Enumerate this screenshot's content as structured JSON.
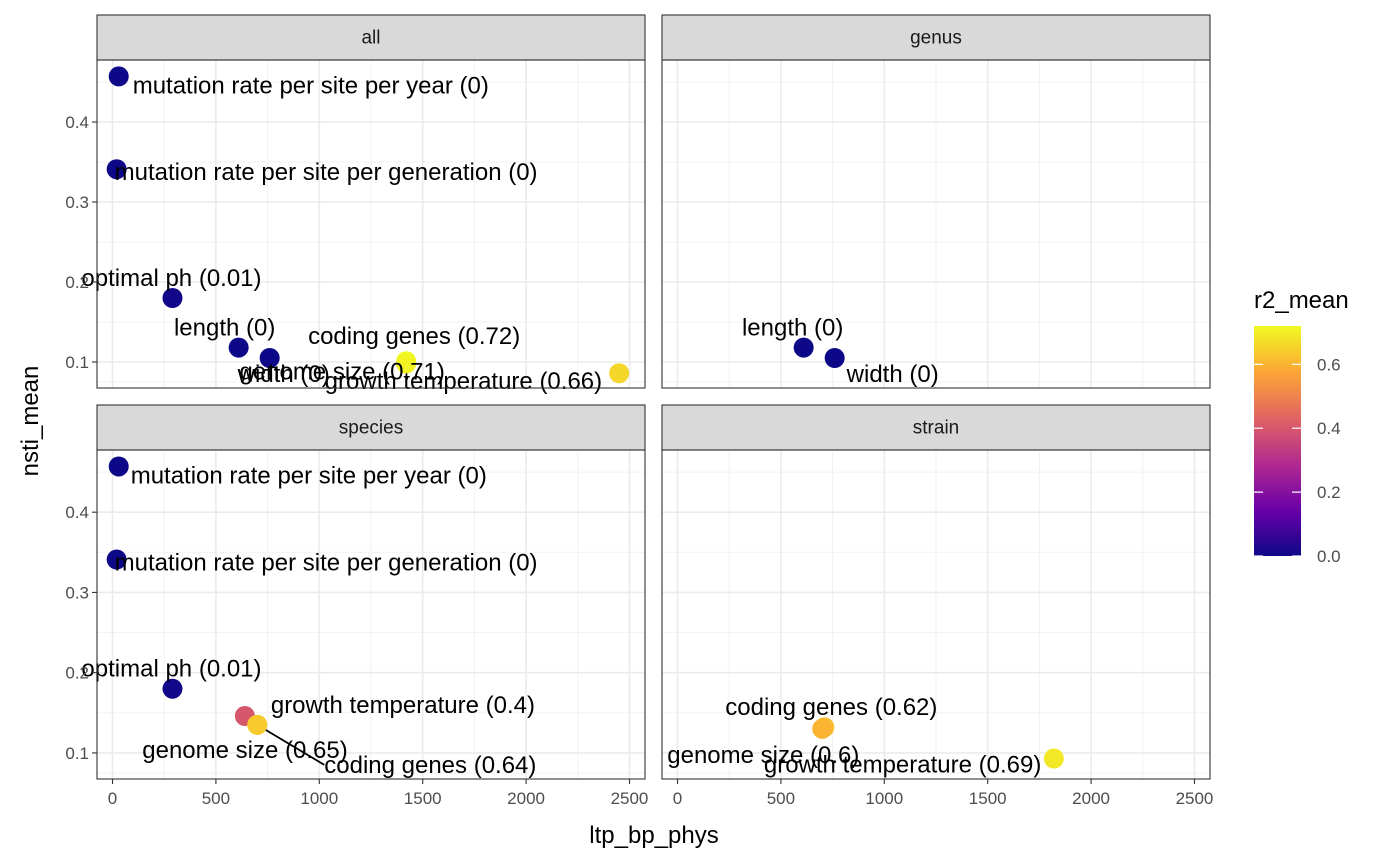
{
  "chart_data": {
    "type": "scatter",
    "xlabel": "ltp_bp_phys",
    "ylabel": "nsti_mean",
    "xlim": [
      -75,
      2575
    ],
    "ylim": [
      0.0675,
      0.4775
    ],
    "x_ticks": [
      0,
      500,
      1000,
      1500,
      2000,
      2500
    ],
    "y_ticks": [
      0.1,
      0.2,
      0.3,
      0.4
    ],
    "x_tick_labels": [
      "0",
      "500",
      "1000",
      "1500",
      "2000",
      "2500"
    ],
    "y_tick_labels": [
      "0.1",
      "0.2",
      "0.3",
      "0.4"
    ],
    "grid": true,
    "legend": {
      "title": "r2_mean",
      "position": "right",
      "ticks": [
        0.0,
        0.2,
        0.4,
        0.6
      ],
      "tick_labels": [
        "0.0",
        "0.2",
        "0.4",
        "0.6"
      ],
      "range": [
        0,
        0.72
      ],
      "colors": [
        "#0d0887",
        "#6a00a8",
        "#b12a90",
        "#e16462",
        "#fca636",
        "#f0f921"
      ]
    },
    "panels": [
      {
        "name": "all",
        "points": [
          {
            "x": 30,
            "y": 0.457,
            "r2": 0.0,
            "label": "mutation rate per site per year (0)"
          },
          {
            "x": 20,
            "y": 0.341,
            "r2": 0.0,
            "label": "mutation rate per site per generation (0)"
          },
          {
            "x": 290,
            "y": 0.18,
            "r2": 0.01,
            "label": "optimal ph (0.01)"
          },
          {
            "x": 610,
            "y": 0.118,
            "r2": 0.0,
            "label": "length (0)"
          },
          {
            "x": 760,
            "y": 0.105,
            "r2": 0.0,
            "label": "width (0)"
          },
          {
            "x": 1420,
            "y": 0.101,
            "r2": 0.72,
            "label": "coding genes (0.72)"
          },
          {
            "x": 1420,
            "y": 0.098,
            "r2": 0.71,
            "label": "genome size (0.71)"
          },
          {
            "x": 2450,
            "y": 0.086,
            "r2": 0.66,
            "label": "growth temperature (0.66)"
          }
        ]
      },
      {
        "name": "genus",
        "points": [
          {
            "x": 610,
            "y": 0.118,
            "r2": 0.0,
            "label": "length (0)"
          },
          {
            "x": 760,
            "y": 0.105,
            "r2": 0.0,
            "label": "width (0)"
          }
        ]
      },
      {
        "name": "species",
        "points": [
          {
            "x": 30,
            "y": 0.457,
            "r2": 0.0,
            "label": "mutation rate per site per year (0)"
          },
          {
            "x": 20,
            "y": 0.341,
            "r2": 0.0,
            "label": "mutation rate per site per generation (0)"
          },
          {
            "x": 290,
            "y": 0.18,
            "r2": 0.01,
            "label": "optimal ph (0.01)"
          },
          {
            "x": 640,
            "y": 0.146,
            "r2": 0.4,
            "label": "growth temperature (0.4)"
          },
          {
            "x": 700,
            "y": 0.135,
            "r2": 0.65,
            "label": "genome size (0.65)"
          },
          {
            "x": 700,
            "y": 0.135,
            "r2": 0.64,
            "label": "coding genes (0.64)"
          }
        ]
      },
      {
        "name": "strain",
        "points": [
          {
            "x": 710,
            "y": 0.132,
            "r2": 0.62,
            "label": "coding genes (0.62)"
          },
          {
            "x": 700,
            "y": 0.13,
            "r2": 0.6,
            "label": "genome size (0.6)"
          },
          {
            "x": 1820,
            "y": 0.093,
            "r2": 0.69,
            "label": "growth temperature (0.69)"
          }
        ]
      }
    ]
  }
}
